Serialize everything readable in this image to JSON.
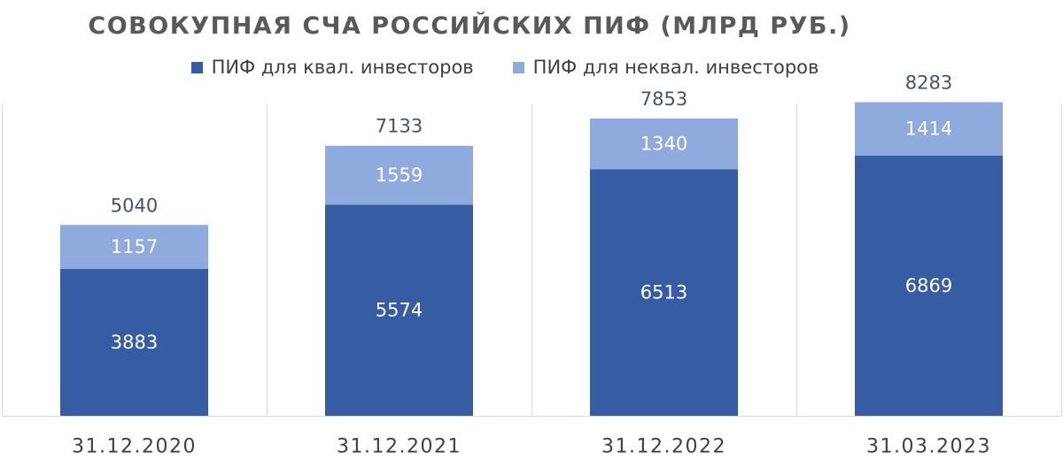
{
  "chart_data": {
    "type": "bar",
    "stacked": true,
    "title": "СОВОКУПНАЯ СЧА РОССИЙСКИХ ПИФ (МЛРД РУБ.)",
    "categories": [
      "31.12.2020",
      "31.12.2021",
      "31.12.2022",
      "31.03.2023"
    ],
    "series": [
      {
        "name": "ПИФ для квал. инвесторов",
        "values": [
          3883,
          5574,
          6513,
          6869
        ],
        "color": "#365DA3"
      },
      {
        "name": "ПИФ для неквал. инвесторов",
        "values": [
          1157,
          1559,
          1340,
          1414
        ],
        "color": "#8FAADC"
      }
    ],
    "totals": [
      5040,
      7133,
      7853,
      8283
    ],
    "xlabel": "",
    "ylabel": "",
    "ylim": [
      0,
      9000
    ],
    "grid": false,
    "legend_position": "top",
    "colors": {
      "category_separator": "#d9d9d9",
      "axis": "#d9d9d9",
      "inner_label": "#ffffff",
      "total_label": "#44546A"
    }
  }
}
